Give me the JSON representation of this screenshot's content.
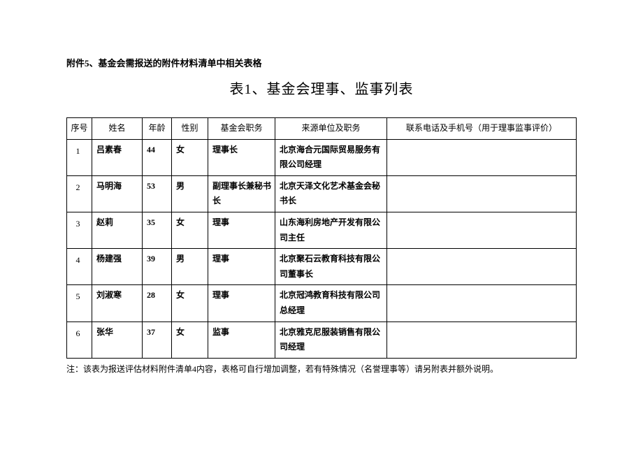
{
  "attachment_label": "附件5、基金会需报送的附件材料清单中相关表格",
  "title": "表1、基金会理事、监事列表",
  "columns": [
    "序号",
    "姓名",
    "年龄",
    "性别",
    "基金会职务",
    "来源单位及职务",
    "联系电话及手机号（用于理事监事评价）"
  ],
  "rows": [
    {
      "idx": "1",
      "name": "吕素春",
      "age": "44",
      "gender": "女",
      "position": "理事长",
      "source": "北京海合元国际贸易服务有限公司经理",
      "contact": ""
    },
    {
      "idx": "2",
      "name": "马明海",
      "age": "53",
      "gender": "男",
      "position": "副理事长兼秘书长",
      "source": "北京天泽文化艺术基金会秘书长",
      "contact": ""
    },
    {
      "idx": "3",
      "name": "赵莉",
      "age": "35",
      "gender": "女",
      "position": "理事",
      "source": "山东海利房地产开发有限公司主任",
      "contact": ""
    },
    {
      "idx": "4",
      "name": "杨建强",
      "age": "39",
      "gender": "男",
      "position": "理事",
      "source": "北京聚石云教育科技有限公司董事长",
      "contact": ""
    },
    {
      "idx": "5",
      "name": "刘淑寒",
      "age": "28",
      "gender": "女",
      "position": "理事",
      "source": "北京冠鸿教育科技有限公司总经理",
      "contact": ""
    },
    {
      "idx": "6",
      "name": "张华",
      "age": "37",
      "gender": "女",
      "position": "监事",
      "source": "北京雅克尼服装销售有限公司经理",
      "contact": ""
    }
  ],
  "note": "注：该表为报送评估材料附件清单4内容，表格可自行增加调整，若有特殊情况（名誉理事等）请另附表并额外说明。"
}
